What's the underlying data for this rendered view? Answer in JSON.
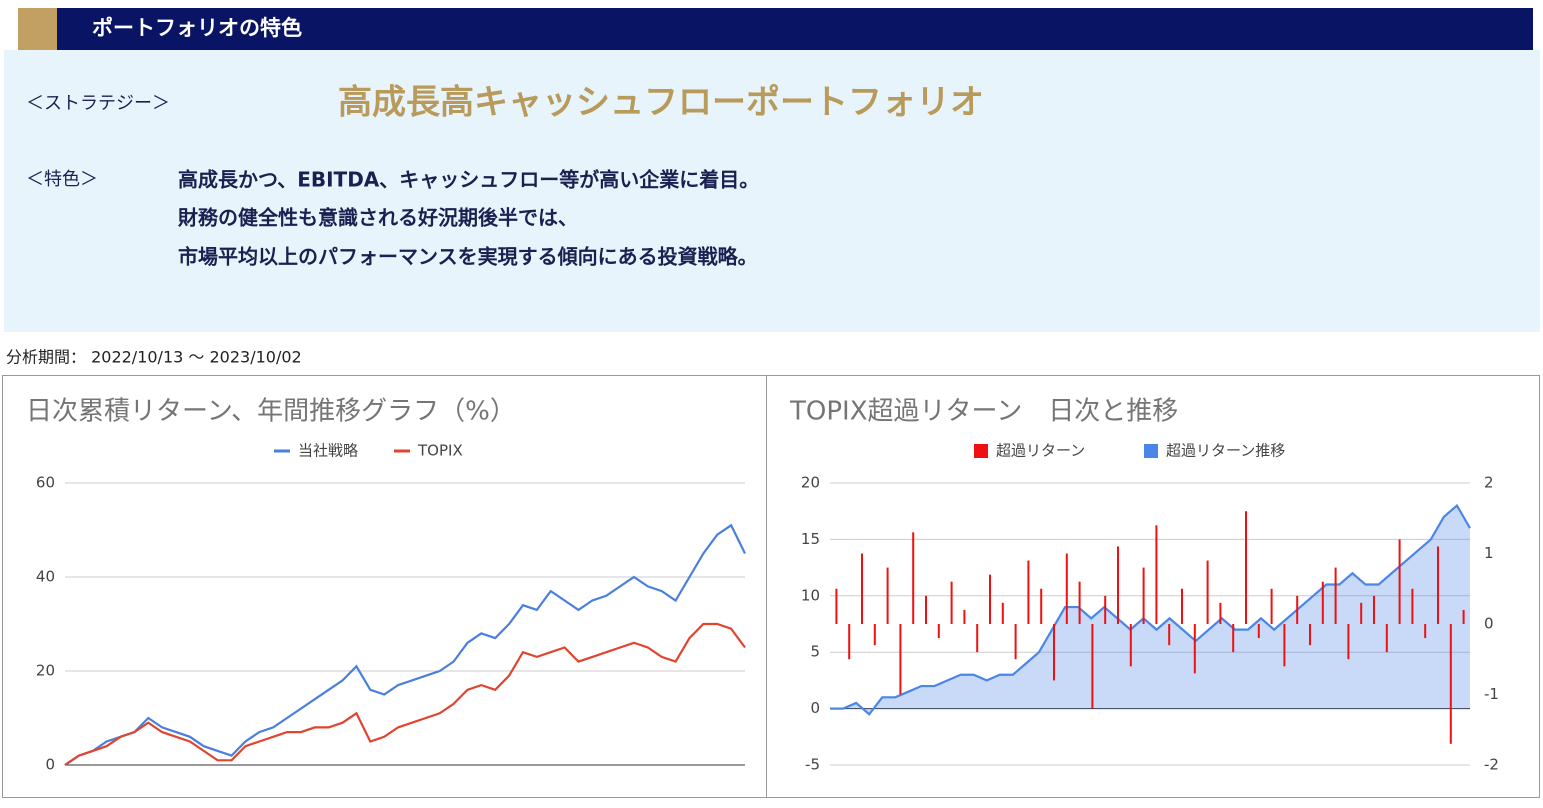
{
  "header": {
    "title": "ポートフォリオの特色"
  },
  "strategy": {
    "label": "＜ストラテジー＞",
    "name": "高成長高キャッシュフローポートフォリオ"
  },
  "features": {
    "label": "＜特色＞",
    "lines": [
      "高成長かつ、EBITDA、キャッシュフロー等が高い企業に着目。",
      "財務の健全性も意識される好況期後半では、",
      "市場平均以上のパフォーマンスを実現する傾向にある投資戦略。"
    ]
  },
  "period": "分析期間： 2022/10/13 ～ 2023/10/02",
  "chart_data": [
    {
      "type": "line",
      "title": "日次累積リターン、年間推移グラフ（%）",
      "ylim": [
        0,
        60
      ],
      "yticks": [
        0,
        20,
        40,
        60
      ],
      "grid": true,
      "series": [
        {
          "name": "当社戦略",
          "color": "#4a7fdd",
          "values": [
            0,
            2,
            3,
            5,
            6,
            7,
            10,
            8,
            7,
            6,
            4,
            3,
            2,
            5,
            7,
            8,
            10,
            12,
            14,
            16,
            18,
            21,
            16,
            15,
            17,
            18,
            19,
            20,
            22,
            26,
            28,
            27,
            30,
            34,
            33,
            37,
            35,
            33,
            35,
            36,
            38,
            40,
            38,
            37,
            35,
            40,
            45,
            49,
            51,
            45
          ]
        },
        {
          "name": "TOPIX",
          "color": "#e0452f",
          "values": [
            0,
            2,
            3,
            4,
            6,
            7,
            9,
            7,
            6,
            5,
            3,
            1,
            1,
            4,
            5,
            6,
            7,
            7,
            8,
            8,
            9,
            11,
            5,
            6,
            8,
            9,
            10,
            11,
            13,
            16,
            17,
            16,
            19,
            24,
            23,
            24,
            25,
            22,
            23,
            24,
            25,
            26,
            25,
            23,
            22,
            27,
            30,
            30,
            29,
            25
          ]
        }
      ]
    },
    {
      "type": "combo",
      "title": "TOPIX超過リターン　日次と推移",
      "ylim": [
        -5,
        20
      ],
      "yticks": [
        -5,
        0,
        5,
        10,
        15,
        20
      ],
      "y2lim": [
        -2,
        2
      ],
      "y2ticks": [
        -2,
        -1,
        0,
        1,
        2
      ],
      "grid": true,
      "series": [
        {
          "name": "超過リターン",
          "color": "#ee1111",
          "type": "bar",
          "axis": "y2",
          "values": [
            0.5,
            -0.5,
            1,
            -0.3,
            0.8,
            -1,
            1.3,
            0.4,
            -0.2,
            0.6,
            0.2,
            -0.4,
            0.7,
            0.3,
            -0.5,
            0.9,
            0.5,
            -0.8,
            1,
            0.6,
            -1.2,
            0.4,
            1.1,
            -0.6,
            0.8,
            1.4,
            -0.3,
            0.5,
            -0.7,
            0.9,
            0.3,
            -0.4,
            1.6,
            -0.2,
            0.5,
            -0.6,
            0.4,
            -0.3,
            0.6,
            0.8,
            -0.5,
            0.3,
            0.4,
            -0.4,
            1.2,
            0.5,
            -0.2,
            1.1,
            -1.7,
            0.2
          ]
        },
        {
          "name": "超過リターン推移",
          "color": "#4a86e8",
          "type": "area",
          "values": [
            0,
            0,
            0.5,
            -0.5,
            1,
            1,
            1.5,
            2,
            2,
            2.5,
            3,
            3,
            2.5,
            3,
            3,
            4,
            5,
            7,
            9,
            9,
            8,
            9,
            8,
            7,
            8,
            7,
            8,
            7,
            6,
            7,
            8,
            7,
            7,
            8,
            7,
            8,
            9,
            10,
            11,
            11,
            12,
            11,
            11,
            12,
            13,
            14,
            15,
            17,
            18,
            16
          ]
        }
      ]
    }
  ]
}
